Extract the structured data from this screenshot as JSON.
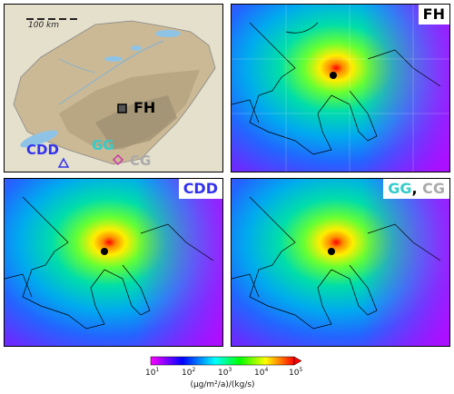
{
  "inset": {
    "scale_label": "100 km",
    "sites": [
      {
        "code": "FH",
        "color": "#000000"
      },
      {
        "code": "CDD",
        "color": "#3333ee"
      },
      {
        "code": "GG",
        "color": "#33cccc"
      },
      {
        "code": "CG",
        "color": "#aaaaaa"
      }
    ],
    "cg_marker_color": "#cc33aa"
  },
  "panels": {
    "fh": {
      "label": "FH"
    },
    "cdd": {
      "label": "CDD"
    },
    "gg_cg": {
      "label_a": "GG",
      "sep": ", ",
      "label_b": "CG"
    }
  },
  "colorbar": {
    "ticks": [
      "10",
      "10",
      "10",
      "10",
      "10"
    ],
    "exponents": [
      "1",
      "2",
      "3",
      "4",
      "5"
    ],
    "unit_label": "(µg/m²/a)/(kg/s)",
    "colors": [
      "#ff00ff",
      "#0000ff",
      "#00ffff",
      "#00ff00",
      "#ffff00",
      "#ff0000"
    ]
  }
}
